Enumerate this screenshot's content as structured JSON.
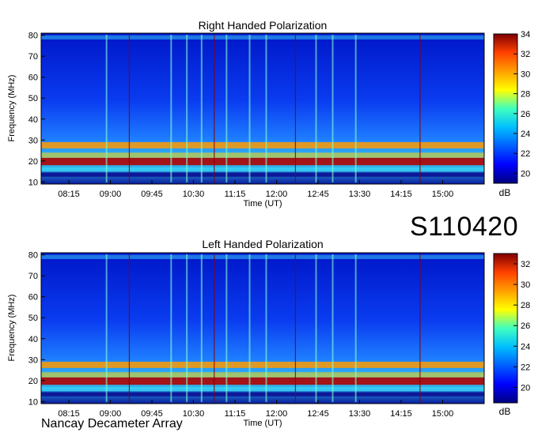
{
  "station_id": "S110420",
  "instrument": "Nancay Decameter Array",
  "chart_data": [
    {
      "type": "heatmap",
      "title": "Right Handed Polarization",
      "xlabel": "Time (UT)",
      "ylabel": "Frequency (MHz)",
      "x_ticks": [
        "08:15",
        "09:00",
        "09:45",
        "10:30",
        "11:15",
        "12:00",
        "12:45",
        "13:30",
        "14:15",
        "15:00"
      ],
      "xlim": [
        "07:45",
        "15:45"
      ],
      "y_ticks": [
        10,
        20,
        30,
        40,
        50,
        60,
        70,
        80
      ],
      "ylim": [
        9,
        81
      ],
      "colorbar": {
        "label": "dB",
        "ticks": [
          20,
          22,
          24,
          26,
          28,
          30,
          32,
          34
        ],
        "range": [
          19,
          34
        ]
      },
      "colormap": [
        "#00007f",
        "#0000ff",
        "#00bfff",
        "#40ffbf",
        "#ffff00",
        "#ff4000",
        "#7f0000"
      ]
    },
    {
      "type": "heatmap",
      "title": "Left Handed Polarization",
      "xlabel": "Time (UT)",
      "ylabel": "Frequency (MHz)",
      "x_ticks": [
        "08:15",
        "09:00",
        "09:45",
        "10:30",
        "11:15",
        "12:00",
        "12:45",
        "13:30",
        "14:15",
        "15:00"
      ],
      "xlim": [
        "07:45",
        "15:45"
      ],
      "y_ticks": [
        10,
        20,
        30,
        40,
        50,
        60,
        70,
        80
      ],
      "ylim": [
        9,
        81
      ],
      "colorbar": {
        "label": "dB",
        "ticks": [
          20,
          22,
          24,
          26,
          28,
          30,
          32
        ],
        "range": [
          18.5,
          33
        ]
      },
      "colormap": [
        "#00007f",
        "#0000ff",
        "#00bfff",
        "#40ffbf",
        "#ffff00",
        "#ff4000",
        "#7f0000"
      ]
    }
  ]
}
